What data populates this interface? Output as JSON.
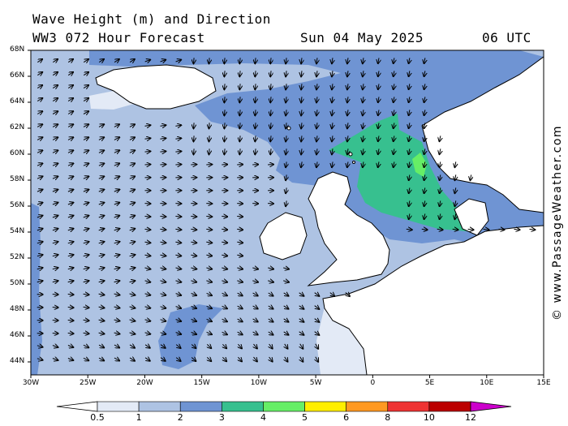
{
  "header": {
    "title_line1": "Wave Height (m) and Direction",
    "title_line2": "WW3 072 Hour Forecast",
    "date": "Sun 04 May 2025",
    "time": "06 UTC"
  },
  "map": {
    "lat_labels": [
      "68N",
      "66N",
      "64N",
      "62N",
      "60N",
      "58N",
      "56N",
      "54N",
      "52N",
      "50N",
      "48N",
      "46N",
      "44N"
    ],
    "lon_labels": [
      "30W",
      "25W",
      "20W",
      "15W",
      "10W",
      "5W",
      "0",
      "5E",
      "10E",
      "15E"
    ],
    "lat_range": [
      43,
      68
    ],
    "lon_range": [
      -30,
      15
    ],
    "colors": {
      "band_0": "#e3eaf6",
      "band_1": "#aec3e3",
      "band_2": "#6f94d3",
      "band_3": "#37c08f",
      "band_4": "#66ee66",
      "land": "#ffffff"
    }
  },
  "colorbar": {
    "ticks": [
      "0.5",
      "1",
      "2",
      "3",
      "4",
      "5",
      "6",
      "8",
      "10",
      "12"
    ],
    "colors": [
      "#e3eaf6",
      "#aec3e3",
      "#6f94d3",
      "#37c08f",
      "#66ee66",
      "#ffee00",
      "#ff9922",
      "#ee3333",
      "#bb0000"
    ],
    "end_left_color": "#ffffff",
    "end_right_color": "#cc00cc"
  },
  "credit": "© www.PassageWeather.com"
}
